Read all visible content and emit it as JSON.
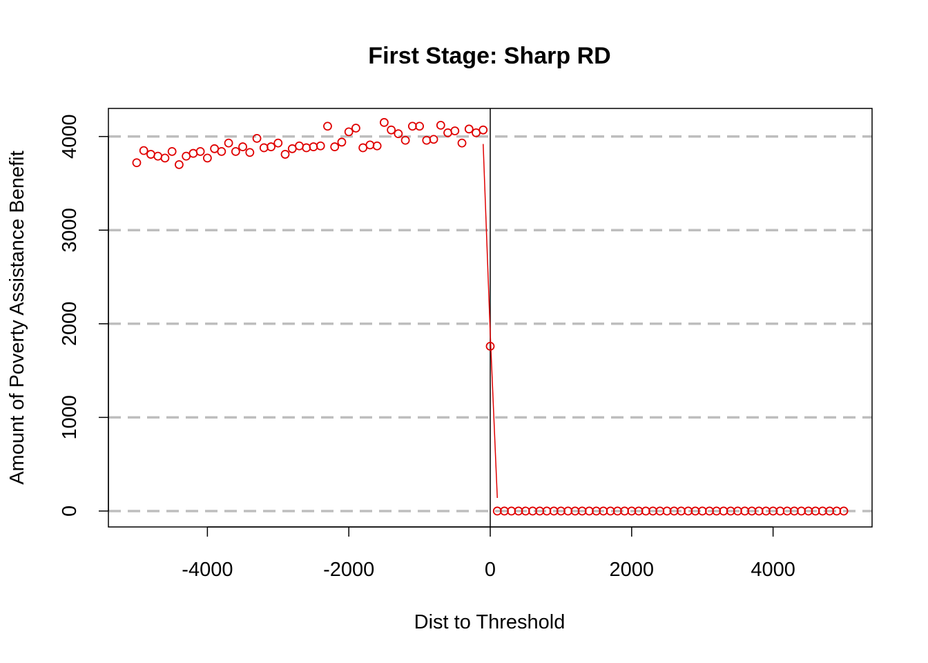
{
  "chart_data": {
    "type": "scatter",
    "title": "First Stage: Sharp RD",
    "xlabel": "Dist to Threshold",
    "ylabel": "Amount of Poverty Assistance Benefit",
    "xlim": [
      -5400,
      5400
    ],
    "ylim": [
      -170,
      4300
    ],
    "x_ticks": [
      -4000,
      -2000,
      0,
      2000,
      4000
    ],
    "x_tick_labels": [
      "-4000",
      "-2000",
      "0",
      "2000",
      "4000"
    ],
    "y_ticks": [
      0,
      1000,
      2000,
      3000,
      4000
    ],
    "y_tick_labels": [
      "0",
      "1000",
      "2000",
      "3000",
      "4000"
    ],
    "grid": "horizontal dashed at y ticks",
    "vertical_line_x": 0,
    "colors": {
      "points": "#e00000",
      "fit_line": "#e00000",
      "grid": "#bebebe",
      "axis": "#000000"
    },
    "series": [
      {
        "values_left": [
          [
            -5000,
            3720
          ],
          [
            -4900,
            3850
          ],
          [
            -4800,
            3810
          ],
          [
            -4700,
            3790
          ],
          [
            -4600,
            3770
          ],
          [
            -4500,
            3840
          ],
          [
            -4400,
            3700
          ],
          [
            -4300,
            3790
          ],
          [
            -4200,
            3820
          ],
          [
            -4100,
            3840
          ],
          [
            -4000,
            3770
          ],
          [
            -3900,
            3870
          ],
          [
            -3800,
            3840
          ],
          [
            -3700,
            3930
          ],
          [
            -3600,
            3840
          ],
          [
            -3500,
            3890
          ],
          [
            -3400,
            3830
          ],
          [
            -3300,
            3980
          ],
          [
            -3200,
            3880
          ],
          [
            -3100,
            3890
          ],
          [
            -3000,
            3930
          ],
          [
            -2900,
            3810
          ],
          [
            -2800,
            3870
          ],
          [
            -2700,
            3900
          ],
          [
            -2600,
            3880
          ],
          [
            -2500,
            3890
          ],
          [
            -2400,
            3900
          ],
          [
            -2300,
            4110
          ],
          [
            -2200,
            3890
          ],
          [
            -2100,
            3940
          ],
          [
            -2000,
            4050
          ],
          [
            -1900,
            4090
          ],
          [
            -1800,
            3880
          ],
          [
            -1700,
            3910
          ],
          [
            -1600,
            3900
          ],
          [
            -1500,
            4150
          ],
          [
            -1400,
            4070
          ],
          [
            -1300,
            4030
          ],
          [
            -1200,
            3960
          ],
          [
            -1100,
            4110
          ],
          [
            -1000,
            4110
          ],
          [
            -900,
            3960
          ],
          [
            -800,
            3970
          ],
          [
            -700,
            4120
          ],
          [
            -600,
            4040
          ],
          [
            -500,
            4060
          ],
          [
            -400,
            3930
          ],
          [
            -300,
            4080
          ],
          [
            -200,
            4040
          ],
          [
            -100,
            4070
          ]
        ],
        "cutoff_point": [
          0,
          1760
        ],
        "values_right_x": [
          100,
          200,
          300,
          400,
          500,
          600,
          700,
          800,
          900,
          1000,
          1100,
          1200,
          1300,
          1400,
          1500,
          1600,
          1700,
          1800,
          1900,
          2000,
          2100,
          2200,
          2300,
          2400,
          2500,
          2600,
          2700,
          2800,
          2900,
          3000,
          3100,
          3200,
          3300,
          3400,
          3500,
          3600,
          3700,
          3800,
          3900,
          4000,
          4100,
          4200,
          4300,
          4400,
          4500,
          4600,
          4700,
          4800,
          4900,
          5000
        ],
        "values_right_y": 0
      }
    ],
    "fit_line": [
      [
        -100,
        3920
      ],
      [
        0,
        1900
      ],
      [
        100,
        140
      ]
    ]
  }
}
